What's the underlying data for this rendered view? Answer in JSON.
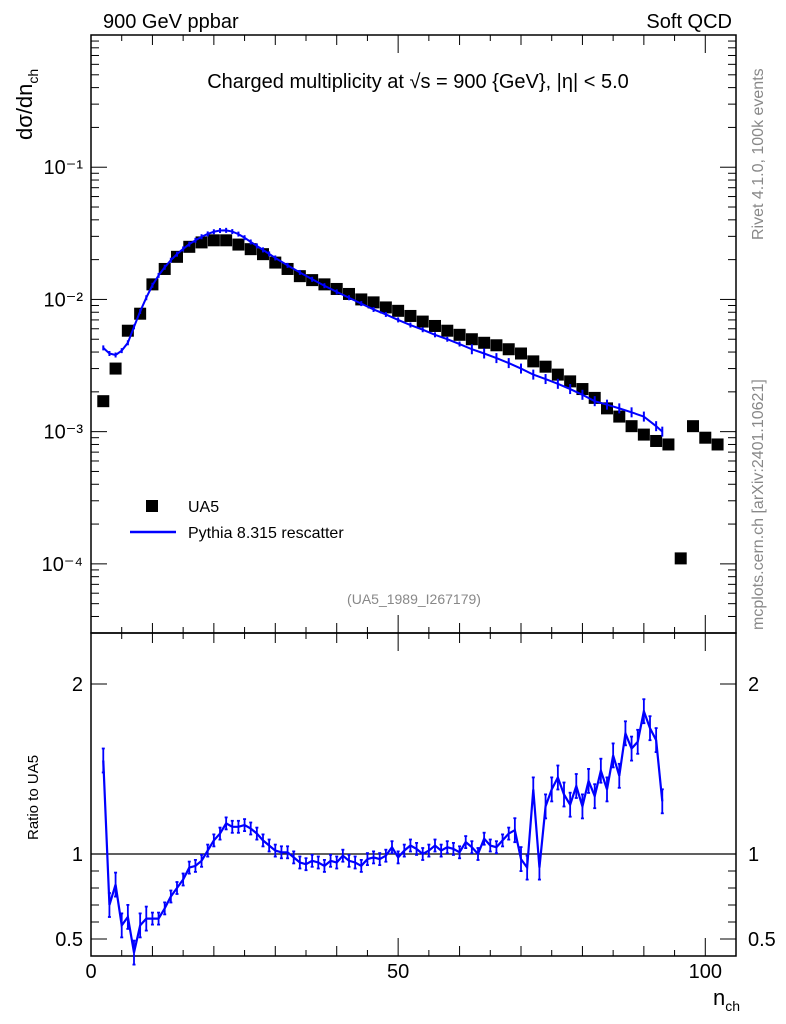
{
  "header": {
    "left": "900 GeV ppbar",
    "right": "Soft QCD"
  },
  "side_text": {
    "top": "Rivet 4.1.0,  100k events",
    "bottom": "mcplots.cern.ch [arXiv:2401.10621]"
  },
  "colors": {
    "data": "#000000",
    "mc": "#0000ff",
    "label_gray": "#888888"
  },
  "chart_data": [
    {
      "type": "scatter",
      "title": "Charged multiplicity at √s = 900 {GeV}, |η| < 5.0",
      "analysis_label": "(UA5_1989_I267179)",
      "ylabel": "dσ/dn_ch",
      "ylabel_main": "dσ/dn",
      "ylabel_sub": "ch",
      "yscale": "log",
      "ylim": [
        3e-05,
        1.0
      ],
      "xlim": [
        0,
        105
      ],
      "yticks": [
        {
          "value": 0.1,
          "label": "10⁻¹"
        },
        {
          "value": 0.01,
          "label": "10⁻²"
        },
        {
          "value": 0.001,
          "label": "10⁻³"
        },
        {
          "value": 0.0001,
          "label": "10⁻⁴"
        }
      ],
      "legend": [
        {
          "name": "UA5",
          "marker": "square"
        },
        {
          "name": "Pythia 8.315 rescatter",
          "marker": "line"
        }
      ],
      "series": [
        {
          "name": "UA5",
          "x": [
            2,
            4,
            6,
            8,
            10,
            12,
            14,
            16,
            18,
            20,
            22,
            24,
            26,
            28,
            30,
            32,
            34,
            36,
            38,
            40,
            42,
            44,
            46,
            48,
            50,
            52,
            54,
            56,
            58,
            60,
            62,
            64,
            66,
            68,
            70,
            72,
            74,
            76,
            78,
            80,
            82,
            84,
            86,
            88,
            90,
            92,
            94,
            96,
            98,
            100,
            102
          ],
          "y": [
            0.0017,
            0.003,
            0.0058,
            0.0078,
            0.013,
            0.017,
            0.021,
            0.025,
            0.027,
            0.028,
            0.028,
            0.026,
            0.024,
            0.022,
            0.019,
            0.017,
            0.015,
            0.014,
            0.013,
            0.012,
            0.011,
            0.01,
            0.0095,
            0.0087,
            0.0082,
            0.0075,
            0.0068,
            0.0063,
            0.0058,
            0.0054,
            0.005,
            0.0047,
            0.0045,
            0.0042,
            0.0039,
            0.0034,
            0.0031,
            0.0027,
            0.0024,
            0.0021,
            0.0018,
            0.0015,
            0.0013,
            0.0011,
            0.00095,
            0.00085,
            0.0008,
            0.00011,
            0.0011,
            0.0009,
            0.0008
          ]
        },
        {
          "name": "Pythia 8.315 rescatter",
          "x": [
            2,
            3,
            4,
            5,
            6,
            7,
            8,
            9,
            10,
            11,
            12,
            13,
            14,
            15,
            16,
            17,
            18,
            19,
            20,
            21,
            22,
            23,
            24,
            25,
            26,
            27,
            28,
            29,
            30,
            32,
            34,
            36,
            38,
            40,
            42,
            44,
            46,
            48,
            50,
            52,
            54,
            56,
            58,
            60,
            62,
            64,
            66,
            68,
            70,
            72,
            74,
            76,
            78,
            80,
            82,
            84,
            86,
            88,
            90,
            92,
            93
          ],
          "y": [
            0.0043,
            0.0039,
            0.0038,
            0.0041,
            0.0047,
            0.0062,
            0.0081,
            0.0103,
            0.0128,
            0.0152,
            0.0175,
            0.0198,
            0.022,
            0.0241,
            0.0262,
            0.028,
            0.0298,
            0.0313,
            0.0325,
            0.0332,
            0.0333,
            0.0326,
            0.0312,
            0.0293,
            0.0272,
            0.0254,
            0.0237,
            0.0221,
            0.0206,
            0.0181,
            0.016,
            0.0142,
            0.0127,
            0.0114,
            0.0103,
            0.0093,
            0.0084,
            0.0077,
            0.007,
            0.0064,
            0.0059,
            0.0054,
            0.005,
            0.0046,
            0.0042,
            0.0039,
            0.0036,
            0.0033,
            0.003,
            0.0027,
            0.0025,
            0.0023,
            0.0021,
            0.0019,
            0.0017,
            0.0016,
            0.0015,
            0.0014,
            0.0013,
            0.0011,
            0.001
          ]
        }
      ]
    },
    {
      "type": "line",
      "ylabel": "Ratio to UA5",
      "xlabel": "n_ch",
      "xlabel_main": "n",
      "xlabel_sub": "ch",
      "xlim": [
        0,
        105
      ],
      "ylim": [
        0.4,
        2.3
      ],
      "xticks": [
        {
          "value": 0,
          "label": "0"
        },
        {
          "value": 50,
          "label": "50"
        },
        {
          "value": 100,
          "label": "100"
        }
      ],
      "yticks": [
        {
          "value": 0.5,
          "label": "0.5"
        },
        {
          "value": 1,
          "label": "1"
        },
        {
          "value": 2,
          "label": "2"
        }
      ],
      "reference_line": 1,
      "series": [
        {
          "name": "Pythia 8.315 rescatter",
          "x": [
            2,
            3,
            4,
            5,
            6,
            7,
            8,
            9,
            10,
            11,
            12,
            13,
            14,
            15,
            16,
            17,
            18,
            19,
            20,
            21,
            22,
            23,
            24,
            25,
            26,
            27,
            28,
            29,
            30,
            31,
            32,
            33,
            34,
            35,
            36,
            37,
            38,
            39,
            40,
            41,
            42,
            43,
            44,
            45,
            46,
            47,
            48,
            49,
            50,
            51,
            52,
            53,
            54,
            55,
            56,
            57,
            58,
            59,
            60,
            61,
            62,
            63,
            64,
            65,
            66,
            67,
            68,
            69,
            70,
            71,
            72,
            73,
            74,
            75,
            76,
            77,
            78,
            79,
            80,
            81,
            82,
            83,
            84,
            85,
            86,
            87,
            88,
            89,
            90,
            91,
            92,
            93
          ],
          "y": [
            1.55,
            0.7,
            0.82,
            0.58,
            0.63,
            0.42,
            0.58,
            0.62,
            0.62,
            0.62,
            0.68,
            0.75,
            0.8,
            0.85,
            0.92,
            0.93,
            0.96,
            1.02,
            1.08,
            1.12,
            1.18,
            1.16,
            1.16,
            1.17,
            1.15,
            1.12,
            1.08,
            1.05,
            1.02,
            1.01,
            1.01,
            0.98,
            0.95,
            0.94,
            0.96,
            0.95,
            0.93,
            0.96,
            0.95,
            0.99,
            0.96,
            0.95,
            0.93,
            0.97,
            0.98,
            0.97,
            0.99,
            1.04,
            0.98,
            1.02,
            1.05,
            1.03,
            1.0,
            1.02,
            1.05,
            1.02,
            1.04,
            1.03,
            1.01,
            1.07,
            1.04,
            1.0,
            1.09,
            1.05,
            1.04,
            1.08,
            1.12,
            1.14,
            0.97,
            0.92,
            1.38,
            0.92,
            1.28,
            1.38,
            1.45,
            1.35,
            1.29,
            1.4,
            1.28,
            1.43,
            1.34,
            1.49,
            1.38,
            1.58,
            1.46,
            1.71,
            1.62,
            1.66,
            1.84,
            1.74,
            1.67,
            1.31
          ]
        }
      ]
    }
  ]
}
